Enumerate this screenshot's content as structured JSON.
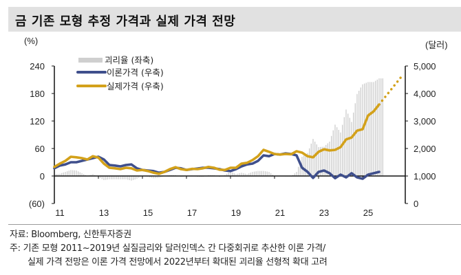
{
  "title": "금 기존 모형 추정 가격과 실제 가격 전망",
  "footer": {
    "source": "자료: Bloomberg, 신한투자증권",
    "note1": "주: 기존 모형 2011~2019년 실질금리와 달러인덱스 간 다중회귀로 추산한 이론 가격/",
    "note2": "실제 가격 전망은 이론 가격 전망에서 2022년부터 확대된 괴리율 선형적 확대 고려"
  },
  "chart_data": {
    "type": "line",
    "title": "금 기존 모형 추정 가격과 실제 가격 전망",
    "left_axis": {
      "label": "(%)",
      "ylim": [
        -60,
        240
      ],
      "ticks": [
        -60,
        0,
        60,
        120,
        180,
        240
      ],
      "tick_labels": [
        "(60)",
        "0",
        "60",
        "120",
        "180",
        "240"
      ]
    },
    "right_axis": {
      "label": "(달러)",
      "ylim": [
        0,
        5000
      ],
      "ticks": [
        0,
        1000,
        2000,
        3000,
        4000,
        5000
      ],
      "tick_labels": [
        "0",
        "1,000",
        "2,000",
        "3,000",
        "4,000",
        "5,000"
      ]
    },
    "x_axis": {
      "xlim": [
        2011,
        2027.2
      ],
      "ticks": [
        2011,
        2013,
        2015,
        2017,
        2019,
        2021,
        2023,
        2025
      ],
      "tick_labels": [
        "11",
        "13",
        "15",
        "17",
        "19",
        "21",
        "23",
        "25"
      ]
    },
    "legend": {
      "placement": "top-left",
      "entries": [
        "괴리율 (좌축)",
        "이론가격 (우축)",
        "실제가격 (우축)"
      ]
    },
    "x_start": 2011.0,
    "x_step": 0.25,
    "series": [
      {
        "name": "괴리율 (좌축)",
        "axis": "left",
        "kind": "bar",
        "color": "#cfcfcf",
        "values": [
          4,
          5,
          9,
          13,
          12,
          6,
          0,
          4,
          -2,
          -9,
          -7,
          -7,
          -7,
          -7,
          -10,
          -6,
          0,
          -2,
          -5,
          -4,
          0,
          2,
          2,
          -2,
          0,
          1,
          -2,
          -2,
          2,
          2,
          -2,
          2,
          10,
          4,
          7,
          4,
          9,
          11,
          11,
          9,
          0,
          0,
          -1,
          -1,
          9,
          42,
          50,
          81,
          63,
          64,
          75,
          112,
          95,
          145,
          118,
          179,
          200,
          205,
          205,
          213
        ]
      },
      {
        "name": "이론가격 (우축)",
        "axis": "right",
        "kind": "line",
        "color": "#3f4f8c",
        "values": [
          1280,
          1380,
          1420,
          1500,
          1500,
          1550,
          1600,
          1650,
          1700,
          1600,
          1400,
          1380,
          1350,
          1400,
          1420,
          1280,
          1220,
          1200,
          1180,
          1120,
          1150,
          1220,
          1300,
          1280,
          1220,
          1250,
          1270,
          1300,
          1300,
          1280,
          1250,
          1200,
          1180,
          1250,
          1350,
          1420,
          1450,
          1550,
          1750,
          1720,
          1800,
          1780,
          1820,
          1800,
          1750,
          1300,
          1150,
          930,
          1150,
          1200,
          1100,
          920,
          1050,
          950,
          1100,
          950,
          900,
          1050,
          1100,
          1150
        ]
      },
      {
        "name": "실제가격 (우축)",
        "axis": "right",
        "kind": "line",
        "color": "#d3a11a",
        "values": [
          1330,
          1450,
          1550,
          1700,
          1680,
          1650,
          1600,
          1720,
          1670,
          1450,
          1300,
          1280,
          1250,
          1300,
          1280,
          1200,
          1220,
          1180,
          1120,
          1080,
          1150,
          1250,
          1320,
          1250,
          1220,
          1260,
          1250,
          1280,
          1330,
          1300,
          1230,
          1220,
          1300,
          1300,
          1450,
          1480,
          1580,
          1720,
          1950,
          1880,
          1800,
          1780,
          1800,
          1790,
          1900,
          1850,
          1720,
          1680,
          1880,
          1970,
          1930,
          1950,
          2050,
          2330,
          2400,
          2650,
          2700,
          3200,
          3350,
          3600
        ]
      },
      {
        "name": "실제가격 전망",
        "axis": "right",
        "kind": "dotted-line",
        "color": "#d3a11a",
        "x": [
          2025.75,
          2026.8
        ],
        "values": [
          3600,
          4650
        ]
      }
    ]
  }
}
